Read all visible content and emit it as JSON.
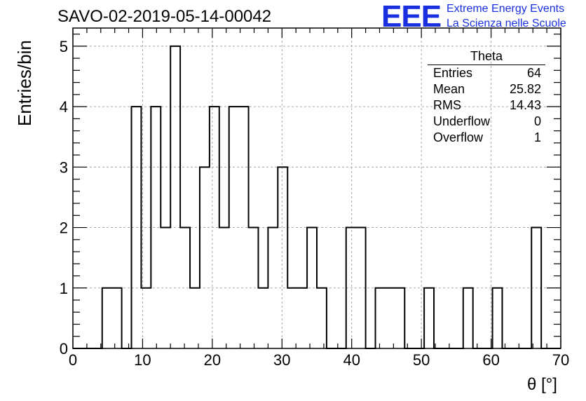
{
  "header": {
    "title": "SAVO-02-2019-05-14-00042",
    "logo_text": "EEE",
    "logo_line1": "Extreme Energy Events",
    "logo_line2": "La Scienza nelle Scuole"
  },
  "stats": {
    "title": "Theta",
    "rows": [
      {
        "label": "Entries",
        "value": "64"
      },
      {
        "label": "Mean",
        "value": "25.82"
      },
      {
        "label": "RMS",
        "value": "14.43"
      },
      {
        "label": "Underflow",
        "value": "0"
      },
      {
        "label": "Overflow",
        "value": "1"
      }
    ]
  },
  "chart_data": {
    "type": "bar",
    "title": "SAVO-02-2019-05-14-00042",
    "xlabel": "θ [°]",
    "ylabel": "Entries/bin",
    "xlim": [
      0,
      70
    ],
    "ylim": [
      0,
      5.3
    ],
    "x_ticks": [
      0,
      10,
      20,
      30,
      40,
      50,
      60,
      70
    ],
    "y_ticks": [
      0,
      1,
      2,
      3,
      4,
      5
    ],
    "grid": true,
    "bin_width": 1.4,
    "bins": [
      {
        "x_low": 0.0,
        "value": 0
      },
      {
        "x_low": 1.4,
        "value": 0
      },
      {
        "x_low": 2.8,
        "value": 0
      },
      {
        "x_low": 4.2,
        "value": 1
      },
      {
        "x_low": 5.6,
        "value": 1
      },
      {
        "x_low": 7.0,
        "value": 0
      },
      {
        "x_low": 8.4,
        "value": 4
      },
      {
        "x_low": 9.8,
        "value": 1
      },
      {
        "x_low": 11.2,
        "value": 4
      },
      {
        "x_low": 12.6,
        "value": 2
      },
      {
        "x_low": 14.0,
        "value": 5
      },
      {
        "x_low": 15.4,
        "value": 2
      },
      {
        "x_low": 16.8,
        "value": 1
      },
      {
        "x_low": 18.2,
        "value": 3
      },
      {
        "x_low": 19.6,
        "value": 4
      },
      {
        "x_low": 21.0,
        "value": 2
      },
      {
        "x_low": 22.4,
        "value": 4
      },
      {
        "x_low": 23.8,
        "value": 4
      },
      {
        "x_low": 25.2,
        "value": 2
      },
      {
        "x_low": 26.6,
        "value": 1
      },
      {
        "x_low": 28.0,
        "value": 2
      },
      {
        "x_low": 29.4,
        "value": 3
      },
      {
        "x_low": 30.8,
        "value": 1
      },
      {
        "x_low": 32.2,
        "value": 1
      },
      {
        "x_low": 33.6,
        "value": 2
      },
      {
        "x_low": 35.0,
        "value": 1
      },
      {
        "x_low": 36.4,
        "value": 0
      },
      {
        "x_low": 37.8,
        "value": 0
      },
      {
        "x_low": 39.2,
        "value": 2
      },
      {
        "x_low": 40.6,
        "value": 2
      },
      {
        "x_low": 42.0,
        "value": 0
      },
      {
        "x_low": 43.4,
        "value": 1
      },
      {
        "x_low": 44.8,
        "value": 1
      },
      {
        "x_low": 46.2,
        "value": 1
      },
      {
        "x_low": 47.6,
        "value": 0
      },
      {
        "x_low": 49.0,
        "value": 0
      },
      {
        "x_low": 50.4,
        "value": 1
      },
      {
        "x_low": 51.8,
        "value": 0
      },
      {
        "x_low": 53.2,
        "value": 0
      },
      {
        "x_low": 54.6,
        "value": 0
      },
      {
        "x_low": 56.0,
        "value": 1
      },
      {
        "x_low": 57.4,
        "value": 0
      },
      {
        "x_low": 58.8,
        "value": 0
      },
      {
        "x_low": 60.2,
        "value": 1
      },
      {
        "x_low": 61.6,
        "value": 0
      },
      {
        "x_low": 63.0,
        "value": 0
      },
      {
        "x_low": 64.4,
        "value": 0
      },
      {
        "x_low": 65.8,
        "value": 2
      },
      {
        "x_low": 67.2,
        "value": 0
      },
      {
        "x_low": 68.6,
        "value": 0
      }
    ]
  }
}
